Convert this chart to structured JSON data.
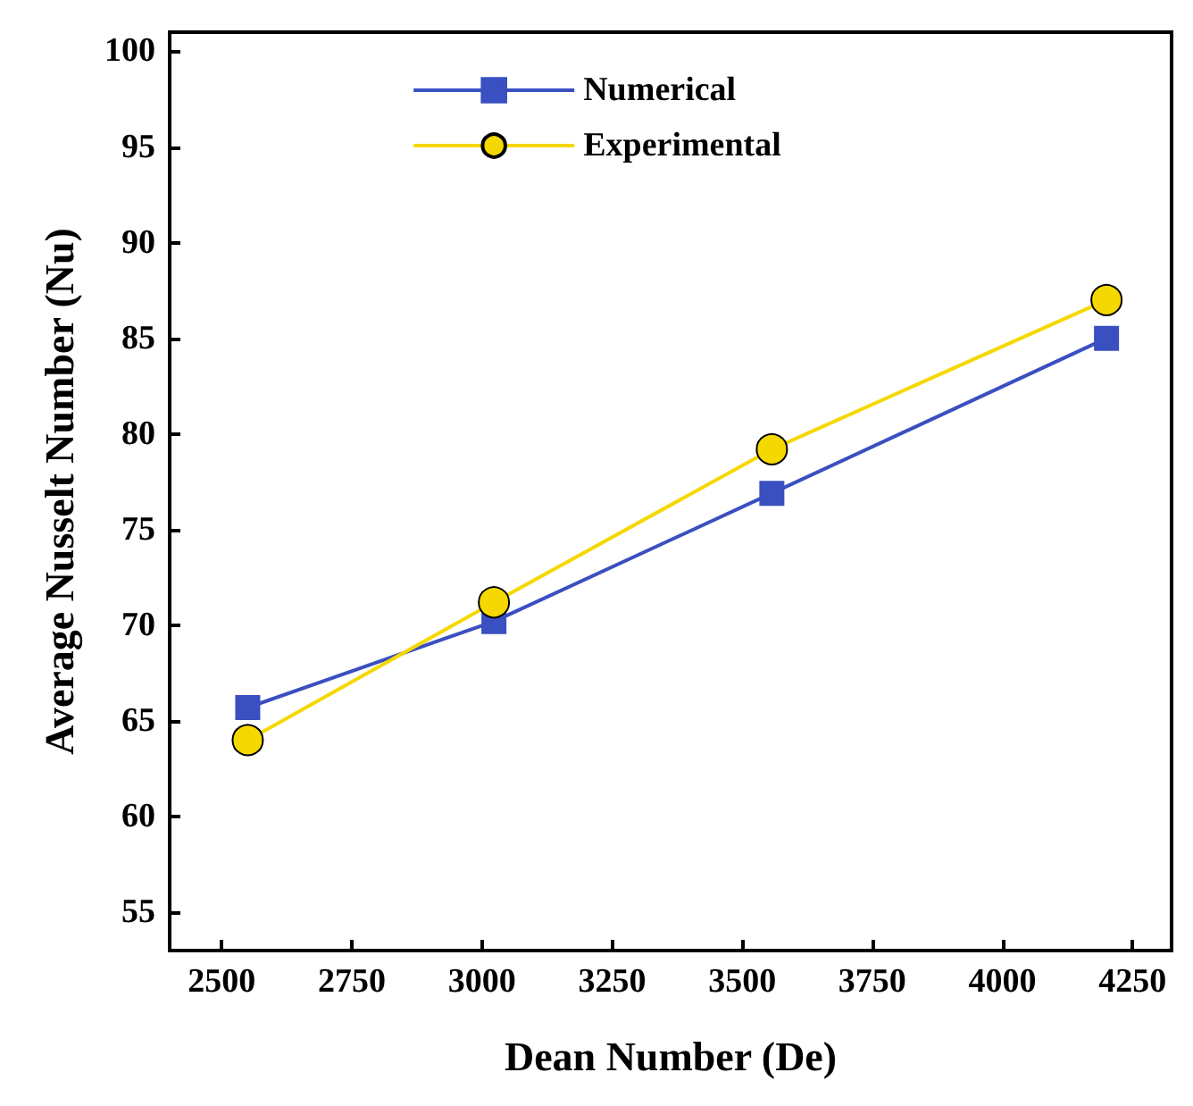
{
  "chart_data": {
    "type": "line",
    "xlabel": "Dean Number (De)",
    "ylabel": "Average Nusselt Number (Nu)",
    "x": [
      2550,
      3023,
      3557,
      4200
    ],
    "series": [
      {
        "name": "Numerical",
        "color": "#3a4fc0",
        "marker": "square",
        "values": [
          65.7,
          70.2,
          76.9,
          85.0
        ]
      },
      {
        "name": "Experimental",
        "color": "#f5d800",
        "marker": "circle",
        "values": [
          64.0,
          71.2,
          79.2,
          87.0
        ]
      }
    ],
    "xlim": [
      2400,
      4325
    ],
    "xticks": [
      2500,
      2750,
      3000,
      3250,
      3500,
      3750,
      4000,
      4250
    ],
    "ylim": [
      53,
      101
    ],
    "yticks": [
      55,
      60,
      65,
      70,
      75,
      80,
      85,
      90,
      95,
      100
    ],
    "legend": "top",
    "grid": false,
    "line_style": "solid"
  }
}
